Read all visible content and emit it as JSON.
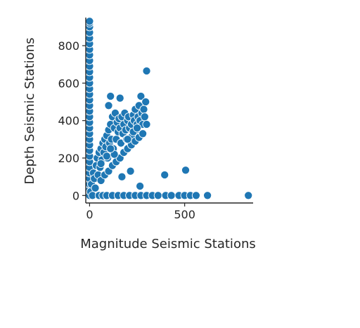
{
  "chart_data": {
    "type": "scatter",
    "title": "",
    "xlabel": "Magnitude Seismic Stations",
    "ylabel": "Depth Seismic Stations",
    "xlim": [
      -20,
      860
    ],
    "ylim": [
      -40,
      950
    ],
    "xticks": [
      0,
      500
    ],
    "xtick_labels": [
      "0",
      "500"
    ],
    "yticks": [
      0,
      200,
      400,
      600,
      800
    ],
    "ytick_labels": [
      "0",
      "200",
      "400",
      "600",
      "800"
    ],
    "grid": false,
    "legend": "none",
    "marker_color": "#1f77b4",
    "marker_edge_color": "#ffffff",
    "points": [
      [
        0,
        0
      ],
      [
        0,
        30
      ],
      [
        0,
        60
      ],
      [
        0,
        90
      ],
      [
        0,
        120
      ],
      [
        0,
        150
      ],
      [
        0,
        180
      ],
      [
        0,
        210
      ],
      [
        0,
        240
      ],
      [
        0,
        270
      ],
      [
        0,
        300
      ],
      [
        0,
        330
      ],
      [
        0,
        360
      ],
      [
        0,
        390
      ],
      [
        0,
        420
      ],
      [
        0,
        450
      ],
      [
        0,
        480
      ],
      [
        0,
        510
      ],
      [
        0,
        540
      ],
      [
        0,
        570
      ],
      [
        0,
        600
      ],
      [
        0,
        630
      ],
      [
        0,
        660
      ],
      [
        0,
        690
      ],
      [
        0,
        720
      ],
      [
        0,
        750
      ],
      [
        0,
        780
      ],
      [
        0,
        810
      ],
      [
        0,
        840
      ],
      [
        0,
        870
      ],
      [
        0,
        900
      ],
      [
        0,
        920
      ],
      [
        0,
        930
      ],
      [
        5,
        20
      ],
      [
        10,
        60
      ],
      [
        15,
        0
      ],
      [
        20,
        120
      ],
      [
        25,
        90
      ],
      [
        30,
        40
      ],
      [
        35,
        160
      ],
      [
        40,
        200
      ],
      [
        45,
        110
      ],
      [
        50,
        0
      ],
      [
        50,
        230
      ],
      [
        55,
        150
      ],
      [
        60,
        250
      ],
      [
        65,
        190
      ],
      [
        70,
        0
      ],
      [
        70,
        280
      ],
      [
        75,
        230
      ],
      [
        80,
        300
      ],
      [
        85,
        260
      ],
      [
        90,
        320
      ],
      [
        90,
        0
      ],
      [
        95,
        200
      ],
      [
        100,
        350
      ],
      [
        100,
        480
      ],
      [
        105,
        280
      ],
      [
        110,
        380
      ],
      [
        110,
        530
      ],
      [
        115,
        300
      ],
      [
        120,
        0
      ],
      [
        120,
        420
      ],
      [
        125,
        250
      ],
      [
        130,
        360
      ],
      [
        135,
        440
      ],
      [
        140,
        300
      ],
      [
        145,
        390
      ],
      [
        150,
        0
      ],
      [
        150,
        340
      ],
      [
        155,
        410
      ],
      [
        160,
        520
      ],
      [
        160,
        360
      ],
      [
        165,
        280
      ],
      [
        170,
        420
      ],
      [
        175,
        330
      ],
      [
        180,
        0
      ],
      [
        180,
        380
      ],
      [
        185,
        440
      ],
      [
        190,
        350
      ],
      [
        195,
        300
      ],
      [
        200,
        400
      ],
      [
        205,
        420
      ],
      [
        210,
        0
      ],
      [
        210,
        360
      ],
      [
        215,
        130
      ],
      [
        220,
        380
      ],
      [
        225,
        320
      ],
      [
        230,
        430
      ],
      [
        235,
        400
      ],
      [
        240,
        0
      ],
      [
        240,
        460
      ],
      [
        245,
        350
      ],
      [
        250,
        380
      ],
      [
        255,
        420
      ],
      [
        260,
        480
      ],
      [
        265,
        50
      ],
      [
        265,
        400
      ],
      [
        270,
        0
      ],
      [
        270,
        530
      ],
      [
        275,
        440
      ],
      [
        280,
        380
      ],
      [
        285,
        460
      ],
      [
        290,
        420
      ],
      [
        295,
        500
      ],
      [
        300,
        380
      ],
      [
        300,
        0
      ],
      [
        300,
        665
      ],
      [
        330,
        0
      ],
      [
        360,
        0
      ],
      [
        395,
        110
      ],
      [
        400,
        0
      ],
      [
        430,
        0
      ],
      [
        470,
        0
      ],
      [
        500,
        0
      ],
      [
        505,
        135
      ],
      [
        530,
        0
      ],
      [
        560,
        0
      ],
      [
        620,
        0
      ],
      [
        835,
        0
      ],
      [
        60,
        80
      ],
      [
        80,
        110
      ],
      [
        100,
        130
      ],
      [
        120,
        160
      ],
      [
        140,
        180
      ],
      [
        160,
        200
      ],
      [
        180,
        230
      ],
      [
        200,
        250
      ],
      [
        220,
        270
      ],
      [
        240,
        290
      ],
      [
        260,
        310
      ],
      [
        280,
        330
      ],
      [
        170,
        100
      ],
      [
        60,
        170
      ],
      [
        90,
        210
      ],
      [
        130,
        220
      ],
      [
        110,
        250
      ],
      [
        200,
        300
      ],
      [
        230,
        340
      ],
      [
        250,
        360
      ]
    ]
  }
}
